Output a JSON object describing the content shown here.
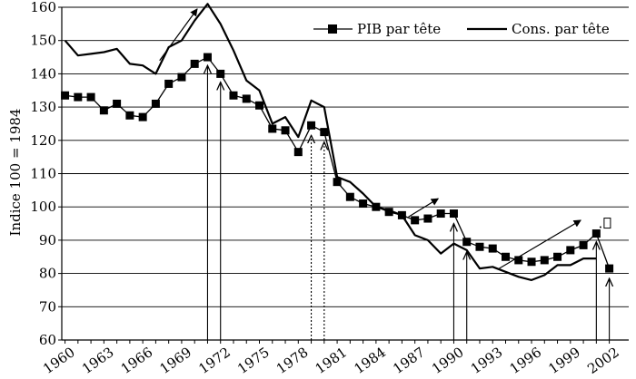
{
  "chart_data": {
    "type": "line",
    "title": "",
    "xlabel": "",
    "ylabel": "Indice 100 = 1984",
    "x": [
      1960,
      1961,
      1962,
      1963,
      1964,
      1965,
      1966,
      1967,
      1968,
      1969,
      1970,
      1971,
      1972,
      1973,
      1974,
      1975,
      1976,
      1977,
      1978,
      1979,
      1980,
      1981,
      1982,
      1983,
      1984,
      1985,
      1986,
      1987,
      1988,
      1989,
      1990,
      1991,
      1992,
      1993,
      1994,
      1995,
      1996,
      1997,
      1998,
      1999,
      2000,
      2001,
      2002
    ],
    "xticks": [
      1960,
      1963,
      1966,
      1969,
      1972,
      1975,
      1978,
      1981,
      1984,
      1987,
      1990,
      1993,
      1996,
      1999,
      2002
    ],
    "xlim": [
      1959.75,
      2003.5
    ],
    "ylim": [
      60,
      160
    ],
    "yticks": [
      60,
      70,
      80,
      90,
      100,
      110,
      120,
      130,
      140,
      150,
      160
    ],
    "grid": "horizontal",
    "legend_position": "top-right",
    "series": [
      {
        "name": "PIB par tête",
        "marker": "square",
        "color": "#000000",
        "values": [
          133.5,
          133,
          133,
          129,
          131,
          127.5,
          127,
          131,
          137,
          139,
          143,
          145,
          140,
          133.5,
          132.5,
          130.5,
          123.5,
          123,
          116.5,
          124.5,
          122.5,
          107.5,
          103,
          101,
          100,
          98.5,
          97.5,
          96,
          96.5,
          98,
          98,
          89.5,
          88,
          87.5,
          85,
          84,
          83.5,
          84,
          85,
          87,
          88.5,
          92,
          81.5
        ]
      },
      {
        "name": "Cons. par tête",
        "marker": "none",
        "color": "#000000",
        "values": [
          150,
          145.5,
          146,
          146.5,
          147.5,
          143,
          142.5,
          140,
          148,
          150,
          156,
          161,
          155,
          147,
          138,
          135,
          125,
          127,
          121,
          132,
          130,
          109,
          107.5,
          104,
          100,
          99,
          97.5,
          91.5,
          90,
          86,
          89,
          87,
          81.5,
          82,
          80.5,
          79,
          78,
          79.5,
          82.5,
          82.5,
          84.5,
          84.5,
          null
        ]
      }
    ],
    "annotations": [
      {
        "kind": "trend-arrow",
        "from": [
          1967.3,
          144
        ],
        "to": [
          1970.2,
          159.5
        ]
      },
      {
        "kind": "trend-arrow",
        "from": [
          1986.5,
          97
        ],
        "to": [
          1988.8,
          102.5
        ]
      },
      {
        "kind": "trend-arrow",
        "from": [
          1993.5,
          81.5
        ],
        "to": [
          1999.8,
          96
        ]
      },
      {
        "kind": "vertical-arrow",
        "x": 1971,
        "y": 142.5,
        "style": "solid"
      },
      {
        "kind": "vertical-arrow",
        "x": 1972,
        "y": 137.5,
        "style": "solid"
      },
      {
        "kind": "vertical-arrow",
        "x": 1979,
        "y": 121.5,
        "style": "dotted"
      },
      {
        "kind": "vertical-arrow",
        "x": 1980,
        "y": 119.5,
        "style": "dotted"
      },
      {
        "kind": "vertical-arrow",
        "x": 1990,
        "y": 95,
        "style": "solid"
      },
      {
        "kind": "vertical-arrow",
        "x": 1991,
        "y": 86.5,
        "style": "solid"
      },
      {
        "kind": "vertical-arrow",
        "x": 2001,
        "y": 89.5,
        "style": "solid"
      },
      {
        "kind": "vertical-arrow",
        "x": 2002,
        "y": 78.5,
        "style": "solid"
      }
    ],
    "end_marker": {
      "text": "",
      "x": 2001.6,
      "y": 95
    }
  }
}
